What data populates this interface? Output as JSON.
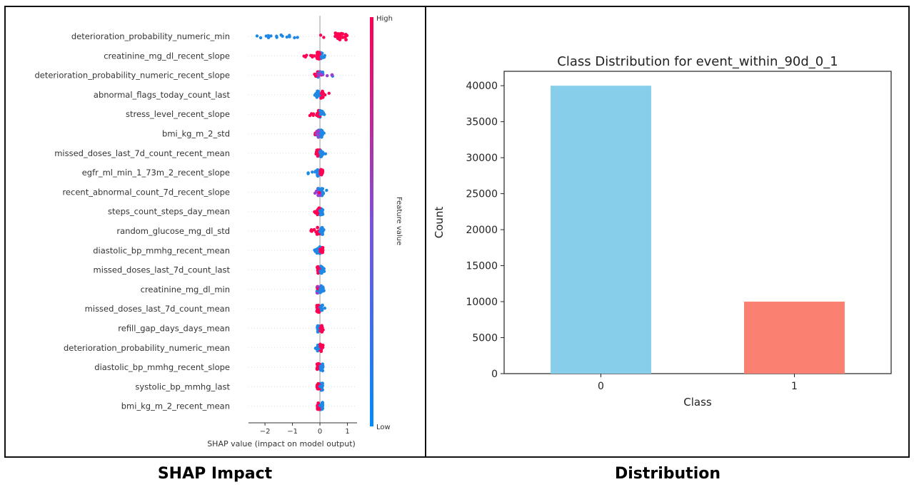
{
  "panels": {
    "left_label": "SHAP Impact",
    "right_label": "Distribution"
  },
  "colors": {
    "shap_low": "#1e88e5",
    "shap_high": "#ff0052",
    "bar_0": "#87ceeb",
    "bar_1": "#fa8072"
  },
  "chart_data": [
    {
      "type": "scatter",
      "subtype": "shap-beeswarm",
      "title": "",
      "xlabel": "SHAP value (impact on model output)",
      "ylabel": "",
      "xlim": [
        -2.6,
        1.35
      ],
      "xticks": [
        -2,
        -1,
        0,
        1
      ],
      "xtick_labels": [
        "−2",
        "−1",
        "0",
        "1"
      ],
      "features": [
        "deterioration_probability_numeric_min",
        "creatinine_mg_dl_recent_slope",
        "deterioration_probability_numeric_recent_slope",
        "abnormal_flags_today_count_last",
        "stress_level_recent_slope",
        "bmi_kg_m_2_std",
        "missed_doses_last_7d_count_recent_mean",
        "egfr_ml_min_1_73m_2_recent_slope",
        "recent_abnormal_count_7d_recent_slope",
        "steps_count_steps_day_mean",
        "random_glucose_mg_dl_std",
        "diastolic_bp_mmhg_recent_mean",
        "missed_doses_last_7d_count_last",
        "creatinine_mg_dl_min",
        "missed_doses_last_7d_count_mean",
        "refill_gap_days_days_mean",
        "deterioration_probability_numeric_mean",
        "diastolic_bp_mmhg_recent_slope",
        "systolic_bp_mmhg_last",
        "bmi_kg_m_2_recent_mean"
      ],
      "feature_spreads": [
        {
          "min": -2.3,
          "max": 1.1,
          "neg_color": "low",
          "pos_color": "high"
        },
        {
          "min": -0.6,
          "max": 0.2,
          "neg_color": "high",
          "pos_color": "low"
        },
        {
          "min": -0.25,
          "max": 0.5,
          "neg_color": "mix",
          "pos_color": "mix"
        },
        {
          "min": -0.2,
          "max": 0.35,
          "neg_color": "low",
          "pos_color": "high"
        },
        {
          "min": -0.4,
          "max": 0.2,
          "neg_color": "high",
          "pos_color": "low"
        },
        {
          "min": -0.25,
          "max": 0.3,
          "neg_color": "mix",
          "pos_color": "low"
        },
        {
          "min": -0.15,
          "max": 0.25,
          "neg_color": "high",
          "pos_color": "low"
        },
        {
          "min": -0.65,
          "max": 0.1,
          "neg_color": "low",
          "pos_color": "high"
        },
        {
          "min": -0.2,
          "max": 0.25,
          "neg_color": "mix",
          "pos_color": "low"
        },
        {
          "min": -0.2,
          "max": 0.15,
          "neg_color": "high",
          "pos_color": "low"
        },
        {
          "min": -0.35,
          "max": 0.15,
          "neg_color": "high",
          "pos_color": "low"
        },
        {
          "min": -0.2,
          "max": 0.1,
          "neg_color": "low",
          "pos_color": "high"
        },
        {
          "min": -0.15,
          "max": 0.2,
          "neg_color": "high",
          "pos_color": "low"
        },
        {
          "min": -0.1,
          "max": 0.15,
          "neg_color": "mix",
          "pos_color": "low"
        },
        {
          "min": -0.12,
          "max": 0.2,
          "neg_color": "high",
          "pos_color": "low"
        },
        {
          "min": -0.12,
          "max": 0.12,
          "neg_color": "low",
          "pos_color": "high"
        },
        {
          "min": -0.18,
          "max": 0.1,
          "neg_color": "low",
          "pos_color": "high"
        },
        {
          "min": -0.12,
          "max": 0.12,
          "neg_color": "high",
          "pos_color": "low"
        },
        {
          "min": -0.1,
          "max": 0.1,
          "neg_color": "high",
          "pos_color": "low"
        },
        {
          "min": -0.1,
          "max": 0.12,
          "neg_color": "high",
          "pos_color": "low"
        }
      ],
      "colorbar": {
        "label": "Feature value",
        "high_label": "High",
        "low_label": "Low"
      }
    },
    {
      "type": "bar",
      "title": "Class Distribution for event_within_90d_0_1",
      "xlabel": "Class",
      "ylabel": "Count",
      "categories": [
        "0",
        "1"
      ],
      "values": [
        40000,
        10000
      ],
      "ylim": [
        0,
        42000
      ],
      "yticks": [
        0,
        5000,
        10000,
        15000,
        20000,
        25000,
        30000,
        35000,
        40000
      ],
      "grid": false,
      "legend": "none"
    }
  ]
}
